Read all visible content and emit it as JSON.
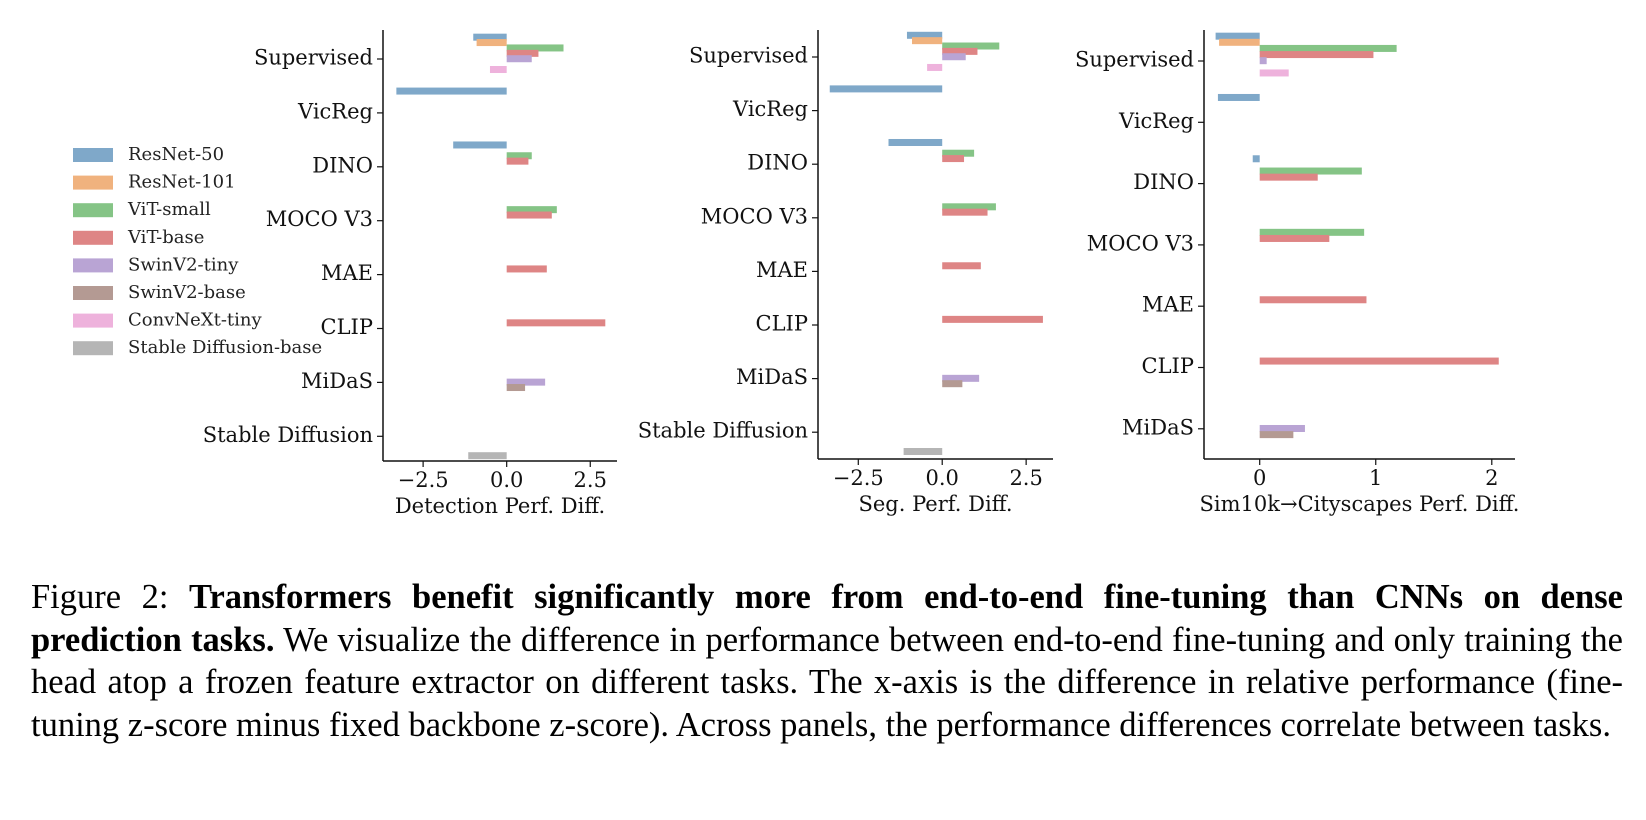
{
  "legend": [
    {
      "name": "ResNet-50",
      "color": "#7fa8c9"
    },
    {
      "name": "ResNet-101",
      "color": "#f0b27e"
    },
    {
      "name": "ViT-small",
      "color": "#85c486"
    },
    {
      "name": "ViT-base",
      "color": "#de8585"
    },
    {
      "name": "SwinV2-tiny",
      "color": "#b9a4d4"
    },
    {
      "name": "SwinV2-base",
      "color": "#b49a93"
    },
    {
      "name": "ConvNeXt-tiny",
      "color": "#eeb2dc"
    },
    {
      "name": "Stable Diffusion-base",
      "color": "#b5b5b5"
    }
  ],
  "chart_data": [
    {
      "type": "bar",
      "orientation": "horizontal",
      "xlabel": "Detection Perf. Diff.",
      "categories": [
        "Supervised",
        "VicReg",
        "DINO",
        "MOCO V3",
        "MAE",
        "CLIP",
        "MiDaS",
        "Stable Diffusion"
      ],
      "xlim": [
        -3.7,
        3.3
      ],
      "xticks": [
        -2.5,
        0.0,
        2.5
      ],
      "xtick_labels": [
        "−2.5",
        "0.0",
        "2.5"
      ],
      "series": [
        {
          "name": "ResNet-50",
          "values": [
            -1.0,
            -3.3,
            -1.6,
            null,
            null,
            null,
            null,
            null
          ]
        },
        {
          "name": "ResNet-101",
          "values": [
            -0.9,
            null,
            null,
            null,
            null,
            null,
            null,
            null
          ]
        },
        {
          "name": "ViT-small",
          "values": [
            1.7,
            null,
            0.75,
            1.5,
            null,
            null,
            null,
            null
          ]
        },
        {
          "name": "ViT-base",
          "values": [
            0.95,
            null,
            0.65,
            1.35,
            1.2,
            2.95,
            null,
            null
          ]
        },
        {
          "name": "SwinV2-tiny",
          "values": [
            0.75,
            null,
            null,
            null,
            null,
            null,
            1.15,
            null
          ]
        },
        {
          "name": "SwinV2-base",
          "values": [
            null,
            null,
            null,
            null,
            null,
            null,
            0.55,
            null
          ]
        },
        {
          "name": "ConvNeXt-tiny",
          "values": [
            -0.5,
            null,
            null,
            null,
            null,
            null,
            null,
            null
          ]
        },
        {
          "name": "Stable Diffusion-base",
          "values": [
            null,
            null,
            null,
            null,
            null,
            null,
            null,
            -1.15
          ]
        }
      ]
    },
    {
      "type": "bar",
      "orientation": "horizontal",
      "xlabel": "Seg. Perf. Diff.",
      "categories": [
        "Supervised",
        "VicReg",
        "DINO",
        "MOCO V3",
        "MAE",
        "CLIP",
        "MiDaS",
        "Stable Diffusion"
      ],
      "xlim": [
        -3.7,
        3.3
      ],
      "xticks": [
        -2.5,
        0.0,
        2.5
      ],
      "xtick_labels": [
        "−2.5",
        "0.0",
        "2.5"
      ],
      "series": [
        {
          "name": "ResNet-50",
          "values": [
            -1.05,
            -3.35,
            -1.6,
            null,
            null,
            null,
            null,
            null
          ]
        },
        {
          "name": "ResNet-101",
          "values": [
            -0.9,
            null,
            null,
            null,
            null,
            null,
            null,
            null
          ]
        },
        {
          "name": "ViT-small",
          "values": [
            1.7,
            null,
            0.95,
            1.6,
            null,
            null,
            null,
            null
          ]
        },
        {
          "name": "ViT-base",
          "values": [
            1.05,
            null,
            0.65,
            1.35,
            1.15,
            3.0,
            null,
            null
          ]
        },
        {
          "name": "SwinV2-tiny",
          "values": [
            0.7,
            null,
            null,
            null,
            null,
            null,
            1.1,
            null
          ]
        },
        {
          "name": "SwinV2-base",
          "values": [
            null,
            null,
            null,
            null,
            null,
            null,
            0.6,
            null
          ]
        },
        {
          "name": "ConvNeXt-tiny",
          "values": [
            -0.45,
            null,
            null,
            null,
            null,
            null,
            null,
            null
          ]
        },
        {
          "name": "Stable Diffusion-base",
          "values": [
            null,
            null,
            null,
            null,
            null,
            null,
            null,
            -1.15
          ]
        }
      ]
    },
    {
      "type": "bar",
      "orientation": "horizontal",
      "xlabel": "Sim10k→Cityscapes Perf. Diff.",
      "categories": [
        "Supervised",
        "VicReg",
        "DINO",
        "MOCO V3",
        "MAE",
        "CLIP",
        "MiDaS"
      ],
      "xlim": [
        -0.48,
        2.2
      ],
      "xticks": [
        0,
        1,
        2
      ],
      "xtick_labels": [
        "0",
        "1",
        "2"
      ],
      "series": [
        {
          "name": "ResNet-50",
          "values": [
            -0.38,
            -0.36,
            -0.06,
            null,
            null,
            null,
            null
          ]
        },
        {
          "name": "ResNet-101",
          "values": [
            -0.35,
            null,
            null,
            null,
            null,
            null,
            null
          ]
        },
        {
          "name": "ViT-small",
          "values": [
            1.18,
            null,
            0.88,
            0.9,
            null,
            null,
            null
          ]
        },
        {
          "name": "ViT-base",
          "values": [
            0.98,
            null,
            0.5,
            0.6,
            0.92,
            2.06,
            null
          ]
        },
        {
          "name": "SwinV2-tiny",
          "values": [
            0.06,
            null,
            null,
            null,
            null,
            null,
            0.39
          ]
        },
        {
          "name": "SwinV2-base",
          "values": [
            null,
            null,
            null,
            null,
            null,
            null,
            0.29
          ]
        },
        {
          "name": "ConvNeXt-tiny",
          "values": [
            0.25,
            null,
            null,
            null,
            null,
            null,
            null
          ]
        },
        {
          "name": "Stable Diffusion-base",
          "values": [
            null,
            null,
            null,
            null,
            null,
            null,
            null
          ]
        }
      ]
    }
  ],
  "caption": {
    "label": "Figure 2:",
    "bold": "Transformers benefit significantly more from end-to-end fine-tuning than CNNs on dense prediction tasks.",
    "text": "We visualize the difference in performance between end-to-end fine-tuning and only training the head atop a frozen feature extractor on different tasks.  The x-axis is the difference in relative performance (fine-tuning z-score minus fixed backbone z-score). Across panels, the performance differences correlate between tasks."
  }
}
